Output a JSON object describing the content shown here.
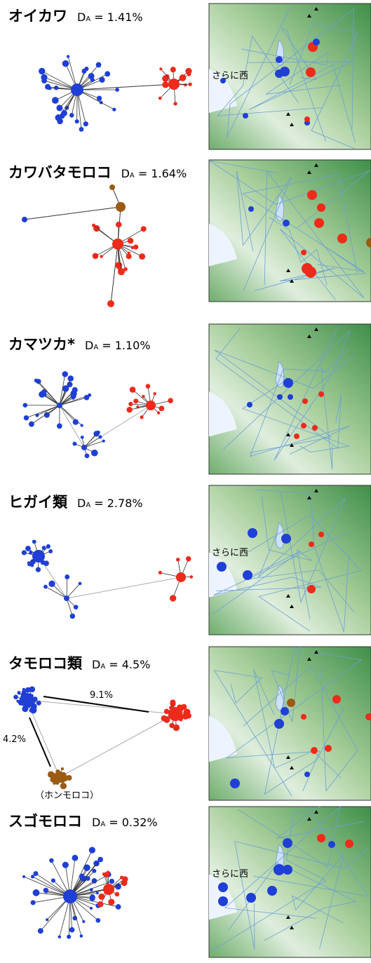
{
  "panels": [
    {
      "name": "オイカワ",
      "da": {
        "d": "D",
        "sub": "A",
        "value": " = 1.41%"
      },
      "map_note": "さらに西"
    },
    {
      "name": "カワバタモロコ",
      "da": {
        "d": "D",
        "sub": "A",
        "value": " = 1.64%"
      }
    },
    {
      "name": "カマツカ*",
      "da": {
        "d": "D",
        "sub": "A",
        "value": " = 1.10%"
      }
    },
    {
      "name": "ヒガイ類",
      "da": {
        "d": "D",
        "sub": "A",
        "value": " = 2.78%"
      },
      "map_note": "さらに西"
    },
    {
      "name": "タモロコ類",
      "da": {
        "d": "D",
        "sub": "A",
        "value": " = 4.5%"
      },
      "annotations": [
        "9.1%",
        "4.2%",
        "（ホンモロコ）"
      ]
    },
    {
      "name": "スゴモロコ",
      "da": {
        "d": "D",
        "sub": "A",
        "value": " = 0.32%"
      },
      "map_note": "さらに西"
    }
  ]
}
